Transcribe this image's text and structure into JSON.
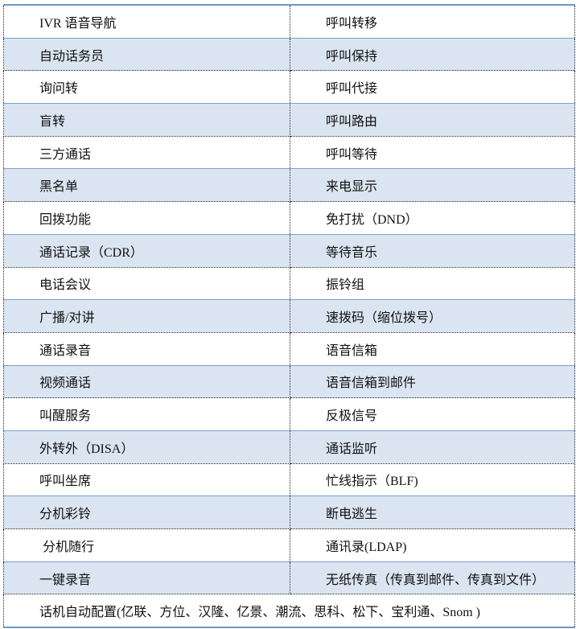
{
  "colors": {
    "row_shade": "#dbe5f1",
    "border_accent": "#6f95c8"
  },
  "rows": [
    [
      "IVR 语音导航",
      "呼叫转移"
    ],
    [
      "自动话务员",
      "呼叫保持"
    ],
    [
      "询问转",
      "呼叫代接"
    ],
    [
      "盲转",
      "呼叫路由"
    ],
    [
      "三方通话",
      "呼叫等待"
    ],
    [
      "黑名单",
      "来电显示"
    ],
    [
      "回拨功能",
      "免打扰（DND）"
    ],
    [
      "通话记录（CDR）",
      "等待音乐"
    ],
    [
      "电话会议",
      "振铃组"
    ],
    [
      "广播/对讲",
      "速拨码（缩位拨号）"
    ],
    [
      "通话录音",
      "语音信箱"
    ],
    [
      "视频通话",
      "语音信箱到邮件"
    ],
    [
      "叫醒服务",
      "反极信号"
    ],
    [
      "外转外（DISA）",
      "通话监听"
    ],
    [
      "呼叫坐席",
      "忙线指示（BLF)"
    ],
    [
      "分机彩铃",
      "断电逃生"
    ],
    [
      " 分机随行",
      "通讯录(LDAP)"
    ],
    [
      "一键录音",
      "无纸传真（传真到邮件、传真到文件）"
    ]
  ],
  "footer_row": "话机自动配置(亿联、方位、汉隆、亿景、潮流、思科、松下、宝利通、Snom )"
}
